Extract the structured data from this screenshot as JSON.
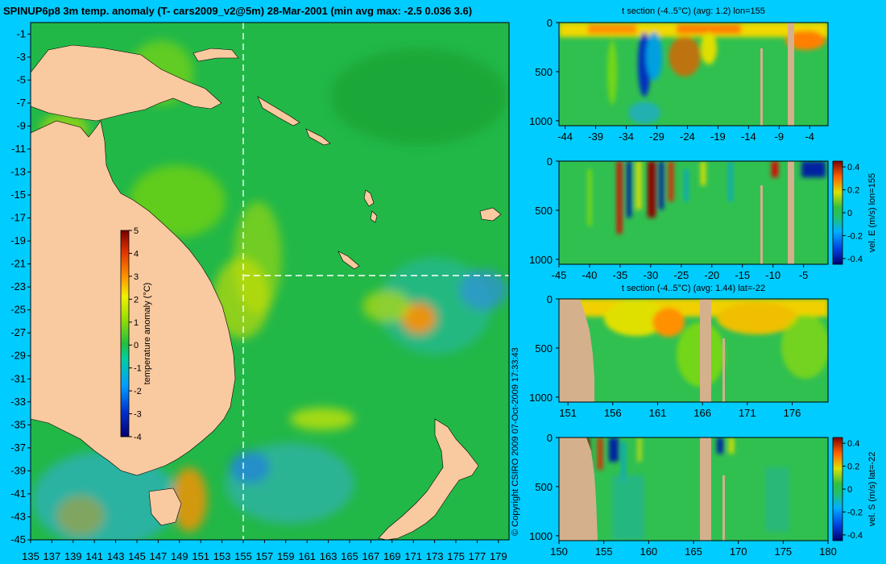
{
  "title": "SPINUP6p8 3m temp. anomaly (T- cars2009_v2@5m) 28-Mar-2001 (min avg max: -2.5 0.036 3.6)",
  "copyright": "© Copyright CSIRO 2009   07-Oct-2009 17:33:43",
  "colors": {
    "background": "#00ccff",
    "land": "#f9c99f",
    "land_section": "#d4b08c",
    "ocean_base": "#22b848"
  },
  "chart_data": [
    {
      "type": "heatmap",
      "name_hint": "map",
      "x_ticks": [
        "135",
        "137",
        "139",
        "141",
        "143",
        "145",
        "147",
        "149",
        "151",
        "153",
        "155",
        "157",
        "159",
        "161",
        "163",
        "165",
        "167",
        "169",
        "171",
        "173",
        "175",
        "177",
        "179"
      ],
      "y_ticks": [
        "-1",
        "-3",
        "-5",
        "-7",
        "-9",
        "-11",
        "-13",
        "-15",
        "-17",
        "-19",
        "-21",
        "-23",
        "-25",
        "-27",
        "-29",
        "-31",
        "-33",
        "-35",
        "-37",
        "-39",
        "-41",
        "-43",
        "-45"
      ],
      "xlim": [
        135,
        180
      ],
      "ylim": [
        -45,
        0
      ],
      "section_lon": 155,
      "section_lat": -22,
      "colorbar": {
        "label": "temperature anomaly (°C)",
        "ticks": [
          "5",
          "4",
          "3",
          "2",
          "1",
          "0",
          "-1",
          "-2",
          "-3",
          "-4"
        ],
        "range": [
          -4,
          5
        ]
      }
    },
    {
      "type": "heatmap",
      "title": "t section (-4..5°C) (avg: 1.2) lon=155",
      "x_ticks": [
        "-44",
        "-39",
        "-34",
        "-29",
        "-24",
        "-19",
        "-14",
        "-9",
        "-4"
      ],
      "xlim": [
        -45,
        -1
      ],
      "y_ticks": [
        "0",
        "500",
        "1000"
      ],
      "ylim": [
        1050,
        0
      ]
    },
    {
      "type": "heatmap",
      "title": "",
      "x_ticks": [
        "-45",
        "-40",
        "-35",
        "-30",
        "-25",
        "-20",
        "-15",
        "-10",
        "-5"
      ],
      "xlim": [
        -45,
        -1
      ],
      "y_ticks": [
        "0",
        "500",
        "1000"
      ],
      "ylim": [
        1050,
        0
      ],
      "colorbar": {
        "label": "vel. E (m/s) lon=155",
        "ticks": [
          "0.4",
          "0.2",
          "0",
          "-0.2",
          "-0.4"
        ],
        "range": [
          -0.45,
          0.45
        ]
      }
    },
    {
      "type": "heatmap",
      "title": "t section (-4..5°C) (avg: 1.44) lat=-22",
      "x_ticks": [
        "151",
        "156",
        "161",
        "166",
        "171",
        "176"
      ],
      "xlim": [
        150,
        180
      ],
      "y_ticks": [
        "0",
        "500",
        "1000"
      ],
      "ylim": [
        1050,
        0
      ]
    },
    {
      "type": "heatmap",
      "title": "",
      "x_ticks": [
        "150",
        "155",
        "160",
        "165",
        "170",
        "175",
        "180"
      ],
      "xlim": [
        150,
        180
      ],
      "y_ticks": [
        "0",
        "500",
        "1000"
      ],
      "ylim": [
        1050,
        0
      ],
      "colorbar": {
        "label": "vel. S (m/s) lat=-22",
        "ticks": [
          "0.4",
          "0.2",
          "0",
          "-0.2",
          "-0.4"
        ],
        "range": [
          -0.45,
          0.45
        ]
      }
    }
  ]
}
